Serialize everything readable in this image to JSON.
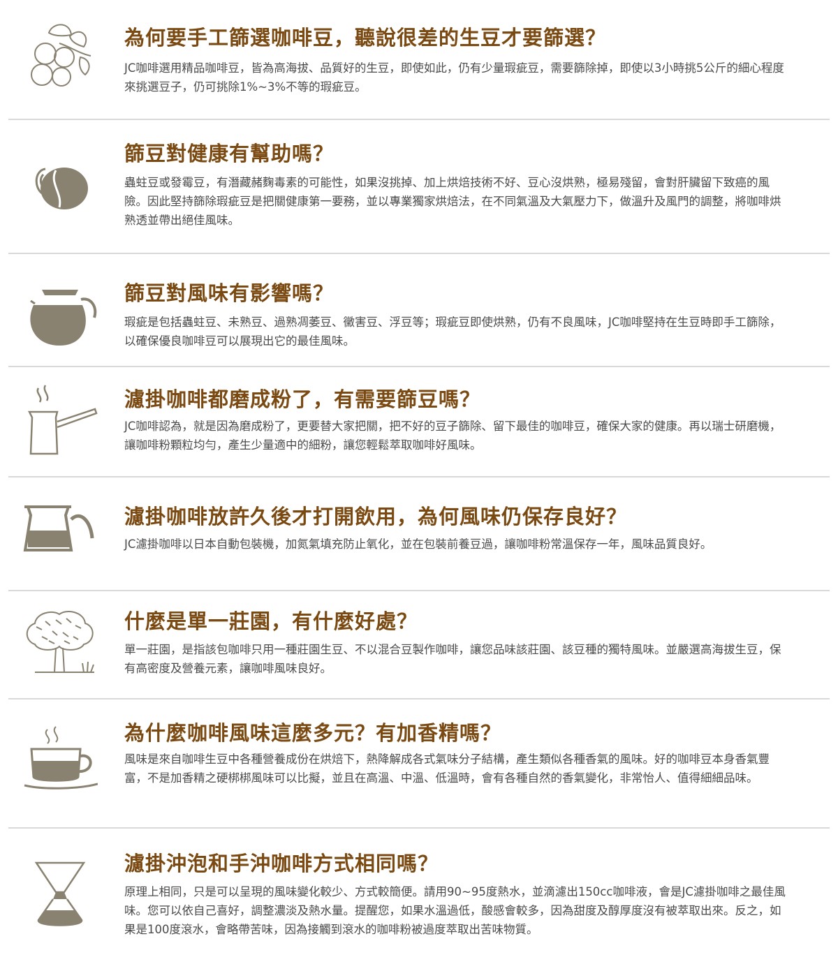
{
  "colors": {
    "question": "#7a4a12",
    "answer": "#4a4a4a",
    "icon": "#8a8270",
    "divider": "#d9d9d9"
  },
  "faqs": [
    {
      "icon": "coffee-branch-icon",
      "question": "為何要手工篩選咖啡豆，聽說很差的生豆才要篩選？",
      "answer": "JC咖啡選用精品咖啡豆，皆為高海拔、品質好的生豆，即使如此，仍有少量瑕疵豆，需要篩除掉，即使以3小時挑5公斤的細心程度來挑選豆子，仍可挑除1%~3%不等的瑕疵豆。"
    },
    {
      "icon": "coffee-bean-icon",
      "question": "篩豆對健康有幫助嗎？",
      "answer": "蟲蛀豆或發霉豆，有潛藏赭麴毒素的可能性，如果沒挑掉、加上烘焙技術不好、豆心沒烘熟，極易殘留，會對肝臟留下致癌的風險。因此堅持篩除瑕疵豆是把關健康第一要務，並以專業獨家烘焙法，在不同氣溫及大氣壓力下，做溫升及風門的調整，將咖啡烘熟透並帶出絕佳風味。"
    },
    {
      "icon": "coffee-pot-icon",
      "question": "篩豆對風味有影響嗎？",
      "answer": "瑕疵是包括蟲蛀豆、未熟豆、過熟凋萎豆、黴害豆、浮豆等；瑕疵豆即使烘熟，仍有不良風味，JC咖啡堅持在生豆時即手工篩除，以確保優良咖啡豆可以展現出它的最佳風味。"
    },
    {
      "icon": "turkish-coffee-pot-icon",
      "question": "濾掛咖啡都磨成粉了，有需要篩豆嗎？",
      "answer": "JC咖啡認為，就是因為磨成粉了，更要替大家把關，把不好的豆子篩除、留下最佳的咖啡豆，確保大家的健康。再以瑞士研磨機，讓咖啡粉顆粒均勻，產生少量適中的細粉，讓您輕鬆萃取咖啡好風味。"
    },
    {
      "icon": "coffee-carafe-icon",
      "question": "濾掛咖啡放許久後才打開飲用，為何風味仍保存良好？",
      "answer": "JC濾掛咖啡以日本自動包裝機，加氮氣填充防止氧化，並在包裝前養豆過，讓咖啡粉常溫保存一年，風味品質良好。"
    },
    {
      "icon": "tree-icon",
      "question": "什麼是單一莊園，有什麼好處？",
      "answer": "單一莊園，是指該包咖啡只用一種莊園生豆、不以混合豆製作咖啡，讓您品味該莊園、該豆種的獨特風味。並嚴選高海拔生豆，保有高密度及營養元素，讓咖啡風味良好。"
    },
    {
      "icon": "coffee-cup-icon",
      "question": "為什麼咖啡風味這麼多元？有加香精嗎？",
      "answer": "風味是來自咖啡生豆中各種營養成份在烘焙下，熱降解成各式氣味分子結構，產生類似各種香氣的風味。好的咖啡豆本身香氣豐富，不是加香精之硬梆梆風味可以比擬，並且在高溫、中溫、低溫時，會有各種自然的香氣變化，非常怡人、值得細細品味。"
    },
    {
      "icon": "chemex-icon",
      "question": "濾掛沖泡和手沖咖啡方式相同嗎？",
      "answer": "原理上相同，只是可以呈現的風味變化較少、方式較簡便。請用90~95度熱水，並滴濾出150cc咖啡液，會是JC濾掛咖啡之最佳風味。您可以依自己喜好，調整濃淡及熱水量。提醒您，如果水溫過低，酸感會較多，因為甜度及醇厚度沒有被萃取出來。反之，如果是100度滾水，會略帶苦味，因為接觸到滾水的咖啡粉被過度萃取出苦味物質。"
    }
  ]
}
